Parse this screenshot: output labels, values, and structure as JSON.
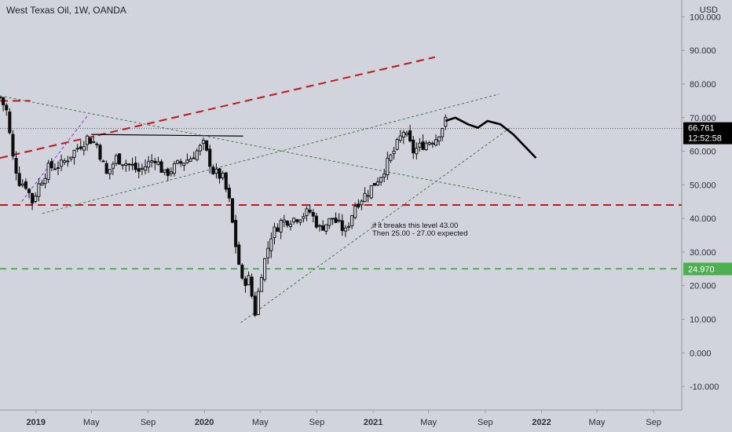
{
  "header": {
    "title": "West Texas Oil, 1W, OANDA",
    "currency": "USD"
  },
  "colors": {
    "background": "#d1d4dc",
    "candle": "#0d0d0d",
    "resistance": "#c01818",
    "support": "#3d9a3d",
    "trendline": "#2e6b2e",
    "fan_line": "#8a39d6",
    "price_tag": "#000000",
    "support_tag": "#4caf50"
  },
  "price_labels": {
    "current_price": "66.761",
    "countdown": "12:52:58",
    "support_level": "24.970"
  },
  "annotation": [
    "if it breaks this level 43.00",
    "Then 25.00 - 27.00 expected"
  ],
  "chart_data": {
    "type": "candlestick",
    "title": "West Texas Oil, 1W, OANDA",
    "y_axis_unit": "USD",
    "ylim": [
      -17,
      105
    ],
    "xlim": [
      "2018-10-15",
      "2022-11-01"
    ],
    "y_ticks": [
      "100.000",
      "90.000",
      "80.000",
      "70.000",
      "60.000",
      "50.000",
      "40.000",
      "30.000",
      "20.000",
      "10.000",
      "0.000",
      "-10.000"
    ],
    "x_ticks": [
      {
        "label": "2019",
        "date": "2019-01-01"
      },
      {
        "label": "May",
        "date": "2019-05-01"
      },
      {
        "label": "Sep",
        "date": "2019-09-01"
      },
      {
        "label": "2020",
        "date": "2020-01-01"
      },
      {
        "label": "May",
        "date": "2020-05-01"
      },
      {
        "label": "Sep",
        "date": "2020-09-01"
      },
      {
        "label": "2021",
        "date": "2021-01-01"
      },
      {
        "label": "May",
        "date": "2021-05-01"
      },
      {
        "label": "Sep",
        "date": "2021-09-01"
      },
      {
        "label": "2022",
        "date": "2022-01-01"
      },
      {
        "label": "May",
        "date": "2022-05-01"
      },
      {
        "label": "Sep",
        "date": "2022-09-01"
      }
    ],
    "weekly_close_path": [
      [
        "2018-10-15",
        76
      ],
      [
        "2018-10-29",
        72
      ],
      [
        "2018-11-12",
        58
      ],
      [
        "2018-11-26",
        51
      ],
      [
        "2018-12-10",
        50
      ],
      [
        "2018-12-24",
        45
      ],
      [
        "2019-01-07",
        50
      ],
      [
        "2019-01-28",
        55
      ],
      [
        "2019-02-25",
        56
      ],
      [
        "2019-03-25",
        60
      ],
      [
        "2019-04-22",
        64
      ],
      [
        "2019-05-13",
        62
      ],
      [
        "2019-06-03",
        53
      ],
      [
        "2019-06-24",
        58
      ],
      [
        "2019-07-22",
        56
      ],
      [
        "2019-08-12",
        54
      ],
      [
        "2019-09-16",
        58
      ],
      [
        "2019-10-07",
        53
      ],
      [
        "2019-11-04",
        56
      ],
      [
        "2019-12-02",
        58
      ],
      [
        "2019-12-30",
        62
      ],
      [
        "2020-01-20",
        54
      ],
      [
        "2020-02-10",
        52
      ],
      [
        "2020-02-24",
        45
      ],
      [
        "2020-03-09",
        32
      ],
      [
        "2020-03-23",
        21
      ],
      [
        "2020-04-06",
        22
      ],
      [
        "2020-04-20",
        12
      ],
      [
        "2020-05-04",
        24
      ],
      [
        "2020-05-25",
        35
      ],
      [
        "2020-06-15",
        39
      ],
      [
        "2020-07-13",
        40
      ],
      [
        "2020-08-17",
        42
      ],
      [
        "2020-09-07",
        37
      ],
      [
        "2020-10-05",
        40
      ],
      [
        "2020-11-02",
        36
      ],
      [
        "2020-11-23",
        44
      ],
      [
        "2020-12-21",
        48
      ],
      [
        "2021-01-18",
        53
      ],
      [
        "2021-02-15",
        60
      ],
      [
        "2021-03-08",
        66
      ],
      [
        "2021-03-29",
        60
      ],
      [
        "2021-04-19",
        62
      ],
      [
        "2021-05-17",
        64
      ],
      [
        "2021-06-07",
        69
      ]
    ],
    "series": [
      {
        "name": "projection",
        "style": "thick-curve",
        "points": [
          [
            "2021-06-07",
            69
          ],
          [
            "2021-06-28",
            70
          ],
          [
            "2021-07-26",
            68
          ],
          [
            "2021-08-16",
            67
          ],
          [
            "2021-09-06",
            69
          ],
          [
            "2021-10-04",
            68
          ],
          [
            "2021-11-01",
            65
          ],
          [
            "2021-11-29",
            61
          ],
          [
            "2021-12-20",
            58
          ]
        ]
      }
    ],
    "horizontal_levels": [
      {
        "value": 44,
        "style": "red-dashed"
      },
      {
        "value": 25,
        "style": "green-dashed"
      },
      {
        "value": 66.761,
        "style": "dotted-current"
      }
    ],
    "lines": [
      {
        "style": "red-dashed",
        "from": [
          "2018-10-15",
          58
        ],
        "to": [
          "2021-05-15",
          88
        ]
      },
      {
        "style": "red-dashed",
        "from": [
          "2018-10-15",
          75
        ],
        "to": [
          "2018-12-20",
          75
        ]
      },
      {
        "style": "black-solid",
        "from": [
          "2019-05-01",
          65
        ],
        "to": [
          "2020-03-25",
          64.5
        ]
      },
      {
        "style": "green-dotted",
        "from": [
          "2018-10-15",
          76.5
        ],
        "to": [
          "2021-11-20",
          46
        ]
      },
      {
        "style": "green-dotted",
        "from": [
          "2019-01-15",
          41.5
        ],
        "to": [
          "2021-10-01",
          77
        ]
      },
      {
        "style": "green-dotted",
        "from": [
          "2020-03-20",
          9
        ],
        "to": [
          "2021-10-25",
          67
        ]
      },
      {
        "style": "purple-dashed",
        "from": [
          "2018-12-01",
          45
        ],
        "to": [
          "2019-04-25",
          71
        ]
      }
    ]
  }
}
